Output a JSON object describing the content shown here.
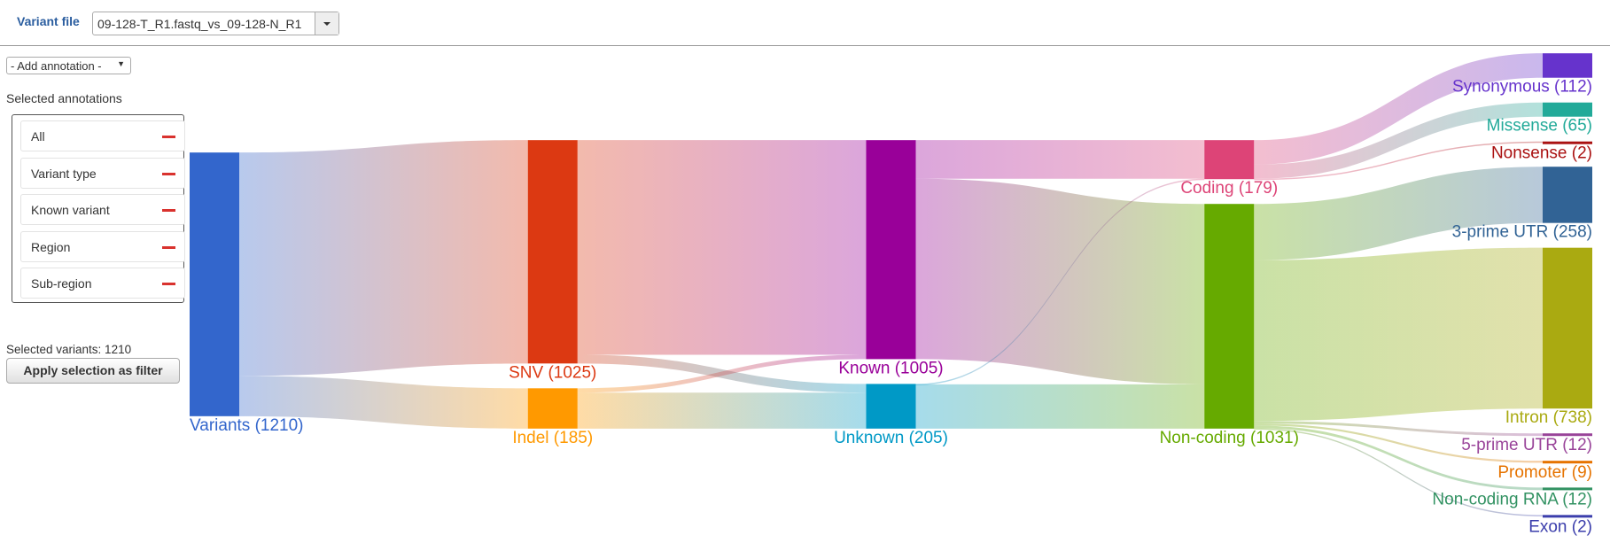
{
  "header": {
    "variant_file_label": "Variant file",
    "variant_file": "09-128-T_R1.fastq_vs_09-128-N_R1"
  },
  "sidebar": {
    "add_annotation": "- Add annotation -",
    "selected_annotations_title": "Selected annotations",
    "annotations": [
      "All",
      "Variant type",
      "Known variant",
      "Region",
      "Sub-region"
    ],
    "selected_variants": "Selected variants: 1210",
    "apply_button": "Apply selection as filter"
  },
  "chart_data": {
    "type": "sankey",
    "nodes": [
      {
        "label": "Variants (1210)",
        "value": 1210,
        "color": "#3366cc"
      },
      {
        "label": "SNV (1025)",
        "value": 1025,
        "color": "#dc3912"
      },
      {
        "label": "Indel (185)",
        "value": 185,
        "color": "#ff9900"
      },
      {
        "label": "Known (1005)",
        "value": 1005,
        "color": "#990099"
      },
      {
        "label": "Unknown (205)",
        "value": 205,
        "color": "#0099c6"
      },
      {
        "label": "Coding (179)",
        "value": 179,
        "color": "#dd4477"
      },
      {
        "label": "Non-coding (1031)",
        "value": 1031,
        "color": "#66aa00"
      },
      {
        "label": "Synonymous (112)",
        "value": 112,
        "color": "#6633cc"
      },
      {
        "label": "Missense (65)",
        "value": 65,
        "color": "#22aa99"
      },
      {
        "label": "Nonsense (2)",
        "value": 2,
        "color": "#aa1111"
      },
      {
        "label": "3-prime UTR (258)",
        "value": 258,
        "color": "#316395"
      },
      {
        "label": "Intron (738)",
        "value": 738,
        "color": "#aaaa11"
      },
      {
        "label": "5-prime UTR (12)",
        "value": 12,
        "color": "#994499"
      },
      {
        "label": "Promoter (9)",
        "value": 9,
        "color": "#e67300"
      },
      {
        "label": "Non-coding RNA (12)",
        "value": 12,
        "color": "#329262"
      },
      {
        "label": "Exon (2)",
        "value": 2,
        "color": "#3b3eac"
      }
    ],
    "links": [
      {
        "source": 0,
        "target": 1,
        "value": 1025
      },
      {
        "source": 0,
        "target": 2,
        "value": 185
      },
      {
        "source": 1,
        "target": 3,
        "value": 985
      },
      {
        "source": 1,
        "target": 4,
        "value": 40
      },
      {
        "source": 2,
        "target": 3,
        "value": 20
      },
      {
        "source": 2,
        "target": 4,
        "value": 165
      },
      {
        "source": 3,
        "target": 5,
        "value": 177
      },
      {
        "source": 3,
        "target": 6,
        "value": 828
      },
      {
        "source": 4,
        "target": 5,
        "value": 2
      },
      {
        "source": 4,
        "target": 6,
        "value": 203
      },
      {
        "source": 5,
        "target": 7,
        "value": 112
      },
      {
        "source": 5,
        "target": 8,
        "value": 65
      },
      {
        "source": 5,
        "target": 9,
        "value": 2
      },
      {
        "source": 6,
        "target": 10,
        "value": 258
      },
      {
        "source": 6,
        "target": 11,
        "value": 738
      },
      {
        "source": 6,
        "target": 12,
        "value": 12
      },
      {
        "source": 6,
        "target": 13,
        "value": 9
      },
      {
        "source": 6,
        "target": 14,
        "value": 12
      },
      {
        "source": 6,
        "target": 15,
        "value": 2
      }
    ]
  }
}
